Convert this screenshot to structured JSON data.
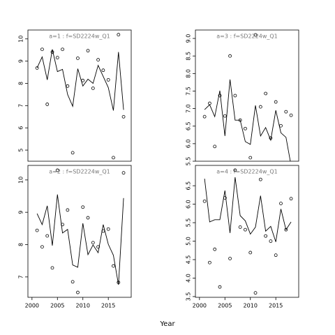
{
  "common": {
    "xlabel": "Year"
  },
  "chart_data": [
    {
      "type": "line",
      "title": "a=1  :  f=SD2224w_Q1",
      "x": [
        2001,
        2002,
        2003,
        2004,
        2005,
        2006,
        2007,
        2008,
        2009,
        2010,
        2011,
        2012,
        2013,
        2014,
        2015,
        2016,
        2017,
        2018
      ],
      "series": [
        {
          "style": "line",
          "color": "#000000",
          "values": [
            8.7,
            9.19,
            8.16,
            9.53,
            8.53,
            8.63,
            7.5,
            6.97,
            8.66,
            7.88,
            8.19,
            8.0,
            8.81,
            8.31,
            7.81,
            6.78,
            9.41,
            6.81
          ]
        },
        {
          "style": "points",
          "color": "#000000",
          "values": [
            8.69,
            9.53,
            7.06,
            9.41,
            9.16,
            9.53,
            7.88,
            4.88,
            9.13,
            8.13,
            9.47,
            7.78,
            9.06,
            8.59,
            8.16,
            4.66,
            10.19,
            6.5
          ]
        }
      ],
      "xlim": [
        1999.2,
        2019.5
      ],
      "ylim": [
        4.5,
        10.4
      ],
      "yticks": [
        5,
        6,
        7,
        8,
        9,
        10
      ]
    },
    {
      "type": "line",
      "title": "a=3  :  f=SD2224w_Q1",
      "x": [
        2001,
        2002,
        2003,
        2004,
        2005,
        2006,
        2007,
        2008,
        2009,
        2010,
        2011,
        2012,
        2013,
        2014,
        2015,
        2016,
        2017,
        2018
      ],
      "series": [
        {
          "style": "line",
          "color": "#000000",
          "values": [
            6.97,
            7.11,
            6.77,
            7.51,
            6.22,
            7.83,
            6.67,
            6.67,
            6.06,
            5.98,
            7.09,
            6.22,
            6.46,
            6.1,
            6.95,
            6.31,
            6.18,
            5.38
          ]
        },
        {
          "style": "points",
          "color": "#000000",
          "values": [
            6.77,
            7.15,
            5.92,
            7.37,
            6.79,
            8.5,
            7.37,
            6.67,
            6.43,
            5.6,
            9.1,
            7.05,
            7.43,
            6.16,
            7.19,
            6.51,
            6.91,
            6.81
          ]
        }
      ],
      "xlim": [
        1999.2,
        2019.5
      ],
      "ylim": [
        5.5,
        9.24
      ],
      "yticks": [
        5.5,
        {
          "value": 6,
          "label": "6.0"
        },
        6.5,
        {
          "value": 7,
          "label": "7.0"
        },
        7.5,
        {
          "value": 8,
          "label": "8.0"
        },
        8.5,
        {
          "value": 9,
          "label": "9.0"
        }
      ]
    },
    {
      "type": "line",
      "title": "a=2  :  f=SD2224w_Q1",
      "x": [
        2001,
        2002,
        2003,
        2004,
        2005,
        2006,
        2007,
        2008,
        2009,
        2010,
        2011,
        2012,
        2013,
        2014,
        2015,
        2016,
        2017,
        2018
      ],
      "series": [
        {
          "style": "line",
          "color": "#000000",
          "values": [
            8.96,
            8.62,
            9.2,
            7.97,
            9.55,
            8.36,
            8.47,
            7.37,
            7.3,
            8.66,
            7.69,
            7.99,
            7.75,
            8.62,
            8.01,
            7.67,
            6.76,
            9.44
          ]
        },
        {
          "style": "points",
          "color": "#000000",
          "values": [
            8.44,
            7.93,
            8.27,
            7.28,
            10.3,
            8.62,
            9.07,
            6.85,
            6.52,
            9.16,
            8.83,
            8.06,
            7.93,
            8.42,
            8.48,
            7.34,
            6.83,
            10.22
          ]
        }
      ],
      "xlim": [
        1999.2,
        2019.5
      ],
      "ylim": [
        6.37,
        10.45
      ],
      "yticks": [
        7,
        8,
        9,
        10
      ],
      "xticks": [
        2000,
        2005,
        2010,
        2015
      ]
    },
    {
      "type": "line",
      "title": "a=4  :  f=SD2224w_Q1",
      "x": [
        2001,
        2002,
        2003,
        2004,
        2005,
        2006,
        2007,
        2008,
        2009,
        2010,
        2011,
        2012,
        2013,
        2014,
        2015,
        2016,
        2017,
        2018
      ],
      "series": [
        {
          "style": "line",
          "color": "#000000",
          "values": [
            6.69,
            5.52,
            5.58,
            5.58,
            6.37,
            5.22,
            6.73,
            5.69,
            5.55,
            5.19,
            5.38,
            6.23,
            5.27,
            5.4,
            4.98,
            5.87,
            5.31,
            5.52
          ]
        },
        {
          "style": "points",
          "color": "#000000",
          "values": [
            6.08,
            4.42,
            4.78,
            3.76,
            6.17,
            4.53,
            6.92,
            5.38,
            5.31,
            4.69,
            3.6,
            6.67,
            5.14,
            5.0,
            4.62,
            6.02,
            5.31,
            6.15
          ]
        }
      ],
      "xlim": [
        1999.2,
        2019.5
      ],
      "ylim": [
        3.48,
        7.05
      ],
      "yticks": [
        3.5,
        {
          "value": 4,
          "label": "4.0"
        },
        4.5,
        {
          "value": 5,
          "label": "5.0"
        },
        5.5,
        {
          "value": 6,
          "label": "6.0"
        },
        6.5
      ],
      "xticks": [
        2000,
        2005,
        2010,
        2015
      ]
    }
  ]
}
